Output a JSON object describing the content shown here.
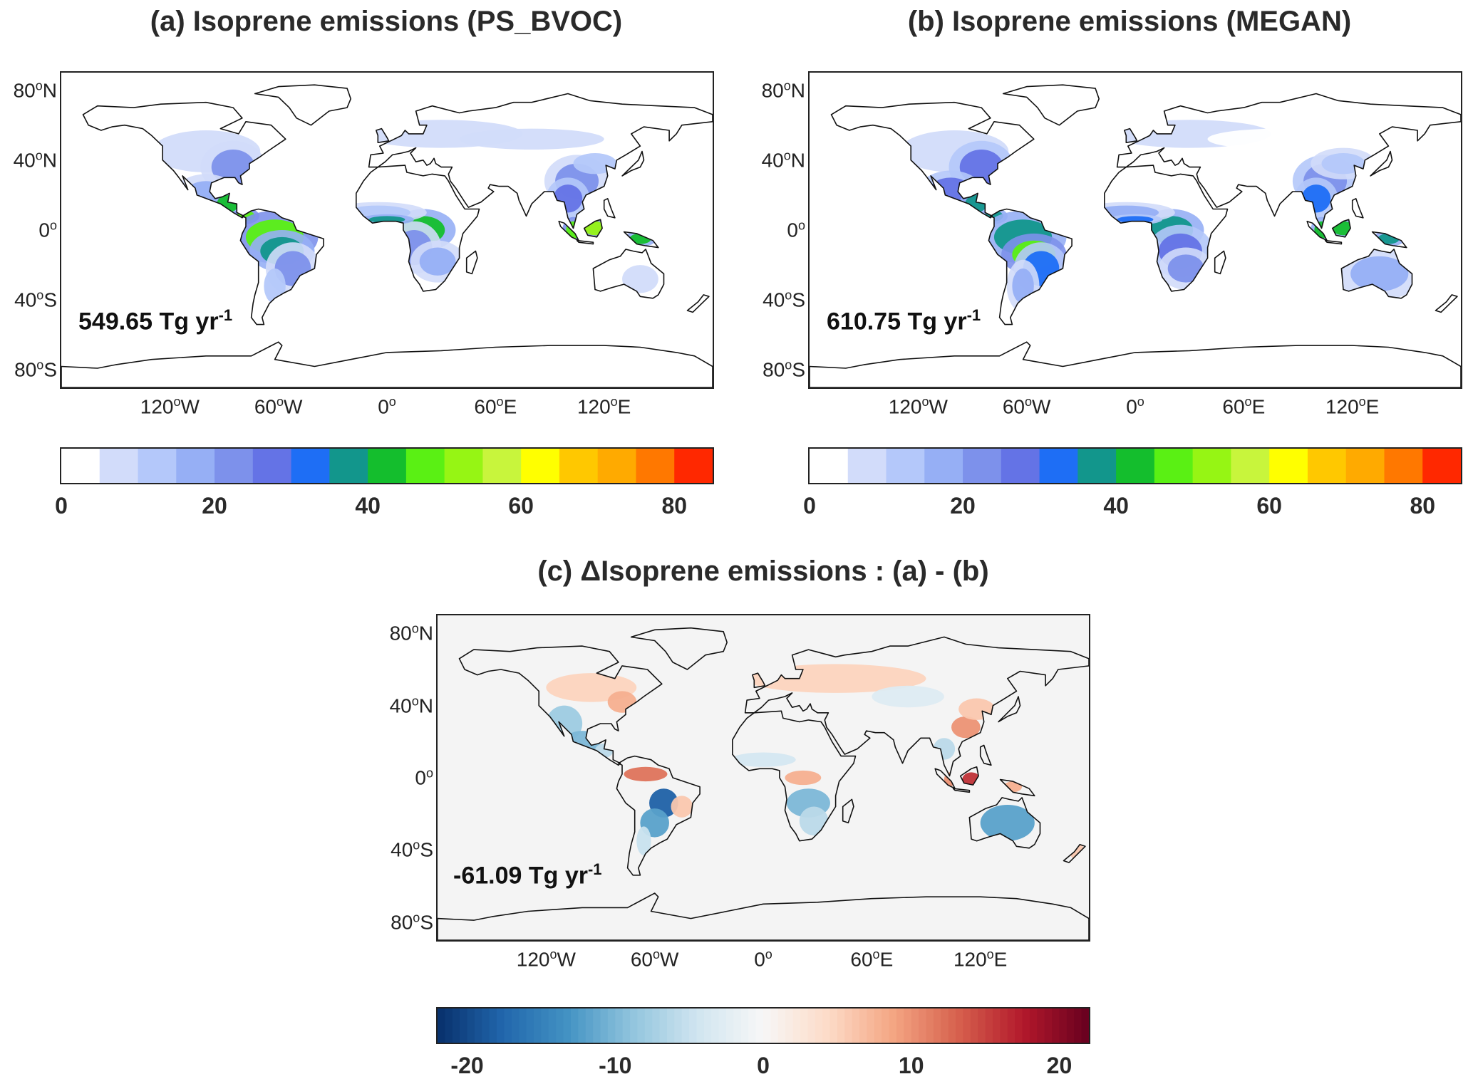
{
  "panels": [
    {
      "id": "a",
      "title": "(a) Isoprene emissions (PS_BVOC)",
      "total_value": "549.65 Tg yr",
      "total_exp": "-1",
      "colorbar_ticks": [
        "0",
        "20",
        "40",
        "60",
        "80"
      ],
      "colorbar_range": [
        0,
        85
      ]
    },
    {
      "id": "b",
      "title": "(b) Isoprene emissions (MEGAN)",
      "total_value": "610.75 Tg yr",
      "total_exp": "-1",
      "colorbar_ticks": [
        "0",
        "20",
        "40",
        "60",
        "80"
      ],
      "colorbar_range": [
        0,
        85
      ]
    },
    {
      "id": "c",
      "title": "(c) ΔIsoprene emissions : (a) - (b)",
      "total_value": "-61.09 Tg yr",
      "total_exp": "-1",
      "colorbar_ticks": [
        "-20",
        "-10",
        "0",
        "10",
        "20"
      ],
      "colorbar_range": [
        -22,
        22
      ]
    }
  ],
  "axes": {
    "lat_ticks": [
      {
        "value": 80,
        "num": "80",
        "deg": "o",
        "hem": "N"
      },
      {
        "value": 40,
        "num": "40",
        "deg": "o",
        "hem": "N"
      },
      {
        "value": 0,
        "num": "0",
        "deg": "o",
        "hem": ""
      },
      {
        "value": -40,
        "num": "40",
        "deg": "o",
        "hem": "S"
      },
      {
        "value": -80,
        "num": "80",
        "deg": "o",
        "hem": "S"
      }
    ],
    "lon_ticks": [
      {
        "value": -120,
        "num": "120",
        "deg": "o",
        "hem": "W"
      },
      {
        "value": -60,
        "num": "60",
        "deg": "o",
        "hem": "W"
      },
      {
        "value": 0,
        "num": "0",
        "deg": "o",
        "hem": ""
      },
      {
        "value": 60,
        "num": "60",
        "deg": "o",
        "hem": "E"
      },
      {
        "value": 120,
        "num": "120",
        "deg": "o",
        "hem": "E"
      }
    ],
    "lon_range": [
      -180,
      180
    ],
    "lat_range": [
      -90,
      90
    ]
  },
  "colors": {
    "discrete_scale": [
      "#ffffff",
      "#d2dcfa",
      "#b4c8fa",
      "#96aff5",
      "#7d91eb",
      "#6473e6",
      "#1e6ef5",
      "#12968c",
      "#14be2d",
      "#5af014",
      "#96f514",
      "#c8f53c",
      "#ffff00",
      "#ffc800",
      "#ffaa00",
      "#ff7800",
      "#ff2800"
    ],
    "diverging_scale": [
      "#08306b",
      "#2166ac",
      "#4393c3",
      "#92c5de",
      "#d1e5f0",
      "#f7f7f7",
      "#fddbc7",
      "#f4a582",
      "#d6604d",
      "#b2182b",
      "#67001f"
    ],
    "ocean_diff": "#f4f4f4"
  }
}
